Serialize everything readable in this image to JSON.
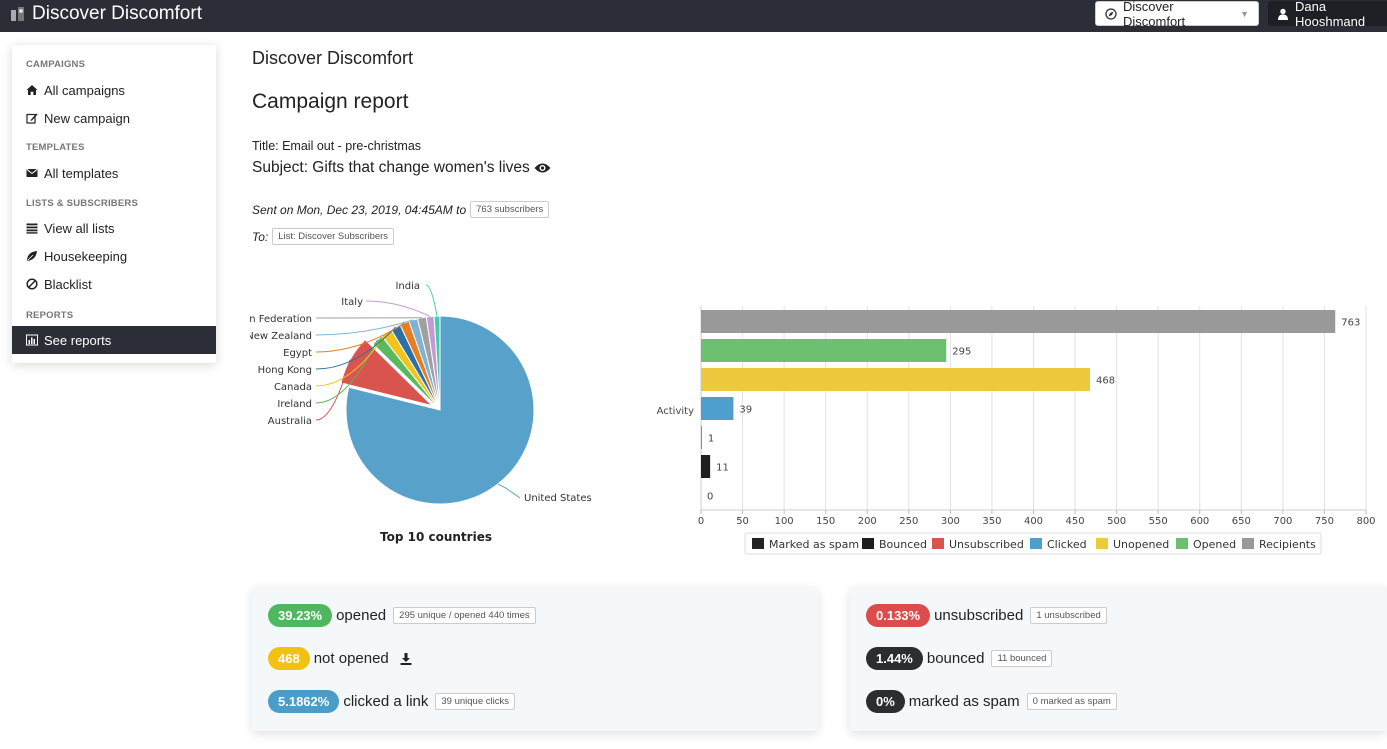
{
  "app": {
    "brand": "Discover Discomfort"
  },
  "header": {
    "campaign_select": "Discover Discomfort",
    "user": "Dana Hooshmand"
  },
  "sidebar": {
    "sections": [
      {
        "heading": "CAMPAIGNS",
        "items": [
          {
            "label": "All campaigns",
            "icon": "home-icon"
          },
          {
            "label": "New campaign",
            "icon": "edit-icon"
          }
        ]
      },
      {
        "heading": "TEMPLATES",
        "items": [
          {
            "label": "All templates",
            "icon": "envelope-icon"
          }
        ]
      },
      {
        "heading": "LISTS & SUBSCRIBERS",
        "items": [
          {
            "label": "View all lists",
            "icon": "list-icon"
          },
          {
            "label": "Housekeeping",
            "icon": "leaf-icon"
          },
          {
            "label": "Blacklist",
            "icon": "ban-icon"
          }
        ]
      },
      {
        "heading": "REPORTS",
        "items": [
          {
            "label": "See reports",
            "icon": "bar-chart-icon",
            "active": true
          }
        ]
      }
    ]
  },
  "main": {
    "app_title": "Discover Discomfort",
    "page_title": "Campaign report",
    "title_line": "Title: Email out - pre-christmas",
    "subject_line": "Subject: Gifts that change women's lives",
    "sent_text": "Sent on Mon, Dec 23, 2019, 04:45AM to",
    "sent_tag": "763 subscribers",
    "to_text": "To:",
    "to_tag": "List: Discover Subscribers"
  },
  "chart_data": [
    {
      "type": "pie",
      "title": "Top 10 countries",
      "slices": [
        {
          "label": "United States",
          "value": 78.1,
          "color": "#57a1cb"
        },
        {
          "label": "Australia",
          "value": 8.4,
          "color": "#d9534f"
        },
        {
          "label": "Ireland",
          "value": 2.0,
          "color": "#5cb85c"
        },
        {
          "label": "Canada",
          "value": 1.9,
          "color": "#f0c419"
        },
        {
          "label": "Hong Kong",
          "value": 1.7,
          "color": "#2e6fa7"
        },
        {
          "label": "Egypt",
          "value": 1.6,
          "color": "#e67e22"
        },
        {
          "label": "New Zealand",
          "value": 1.5,
          "color": "#7fb3d5"
        },
        {
          "label": "Russian Federation",
          "value": 1.5,
          "color": "#a0a0a0"
        },
        {
          "label": "Italy",
          "value": 1.3,
          "color": "#c39bd3"
        },
        {
          "label": "India",
          "value": 1.0,
          "color": "#48c9b0"
        }
      ]
    },
    {
      "type": "bar",
      "orientation": "horizontal",
      "category": "Activity",
      "xlim": [
        0,
        800
      ],
      "xticks": [
        0,
        50,
        100,
        150,
        200,
        250,
        300,
        350,
        400,
        450,
        500,
        550,
        600,
        650,
        700,
        750,
        800
      ],
      "grid": true,
      "series": [
        {
          "name": "Recipients",
          "value": 763,
          "color": "#999999"
        },
        {
          "name": "Opened",
          "value": 295,
          "color": "#6cc070"
        },
        {
          "name": "Unopened",
          "value": 468,
          "color": "#eec940"
        },
        {
          "name": "Clicked",
          "value": 39,
          "color": "#4e9fcd"
        },
        {
          "name": "Unsubscribed",
          "value": 1,
          "color": "#d9534f"
        },
        {
          "name": "Bounced",
          "value": 11,
          "color": "#1e1e1e"
        },
        {
          "name": "Marked as spam",
          "value": 0,
          "color": "#222222"
        }
      ],
      "legend_order": [
        "Marked as spam",
        "Bounced",
        "Unsubscribed",
        "Clicked",
        "Unopened",
        "Opened",
        "Recipients"
      ],
      "legend_position": "bottom"
    }
  ],
  "stats_left": [
    {
      "badge": "39.23%",
      "label": "opened",
      "tag": "295 unique / opened 440 times",
      "color": "green"
    },
    {
      "badge": "468",
      "label": "not opened",
      "tag": "",
      "color": "yellow",
      "icon": "download-icon"
    },
    {
      "badge": "5.1862%",
      "label": "clicked a link",
      "tag": "39 unique clicks",
      "color": "blue"
    }
  ],
  "stats_right": [
    {
      "badge": "0.133%",
      "label": "unsubscribed",
      "tag": "1 unsubscribed",
      "color": "red"
    },
    {
      "badge": "1.44%",
      "label": "bounced",
      "tag": "11 bounced",
      "color": "dark"
    },
    {
      "badge": "0%",
      "label": "marked as spam",
      "tag": "0 marked as spam",
      "color": "dark"
    }
  ]
}
